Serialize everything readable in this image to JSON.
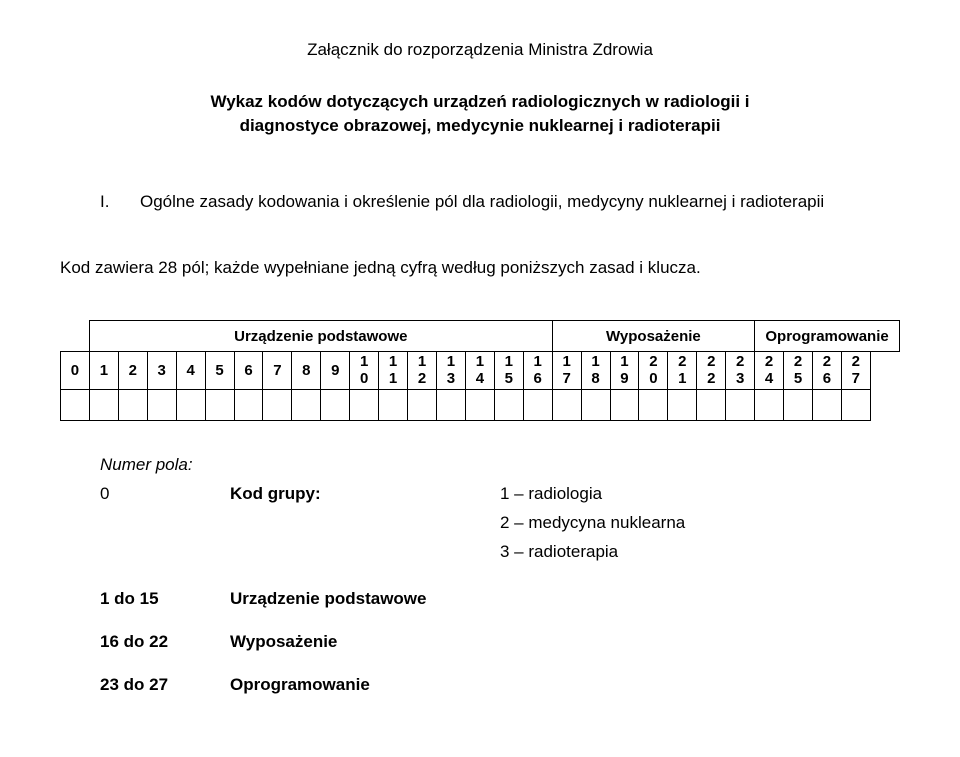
{
  "header": {
    "title": "Załącznik do rozporządzenia Ministra Zdrowia"
  },
  "subtitle": {
    "line1": "Wykaz kodów dotyczących urządzeń radiologicznych w radiologii i",
    "line2": "diagnostyce obrazowej, medycynie nuklearnej i radioterapii"
  },
  "section_i": {
    "roman": "I.",
    "text": "Ogólne zasady kodowania i określenie pól dla radiologii, medycyny nuklearnej i radioterapii"
  },
  "kod_line": "Kod zawiera 28 pól; każde wypełniane jedną cyfrą według poniższych zasad i klucza.",
  "table": {
    "group_headers": [
      "Urządzenie podstawowe",
      "Wyposażenie",
      "Oprogramowanie"
    ],
    "group_spans": [
      16,
      7,
      5
    ],
    "cells_top": [
      "0",
      "1",
      "2",
      "3",
      "4",
      "5",
      "6",
      "7",
      "8",
      "9",
      "1",
      "1",
      "1",
      "1",
      "1",
      "1",
      "1",
      "1",
      "1",
      "1",
      "2",
      "2",
      "2",
      "2",
      "2",
      "2",
      "2",
      "2"
    ],
    "cells_bot": [
      "",
      "",
      "",
      "",
      "",
      "",
      "",
      "",
      "",
      "",
      "0",
      "1",
      "2",
      "3",
      "4",
      "5",
      "6",
      "7",
      "8",
      "9",
      "0",
      "1",
      "2",
      "3",
      "4",
      "5",
      "6",
      "7"
    ]
  },
  "legend": {
    "title": "Numer pola:",
    "rows": [
      {
        "a": "0",
        "b": "Kod grupy:",
        "c": "1 – radiologia"
      },
      {
        "a": "",
        "b": "",
        "c": "2 – medycyna nuklearna"
      },
      {
        "a": "",
        "b": "",
        "c": "3 – radioterapia"
      },
      {
        "a": "1 do 15",
        "b": "Urządzenie podstawowe",
        "c": ""
      },
      {
        "a": "16 do 22",
        "b": "Wyposażenie",
        "c": ""
      },
      {
        "a": "23 do 27",
        "b": "Oprogramowanie",
        "c": ""
      }
    ]
  }
}
